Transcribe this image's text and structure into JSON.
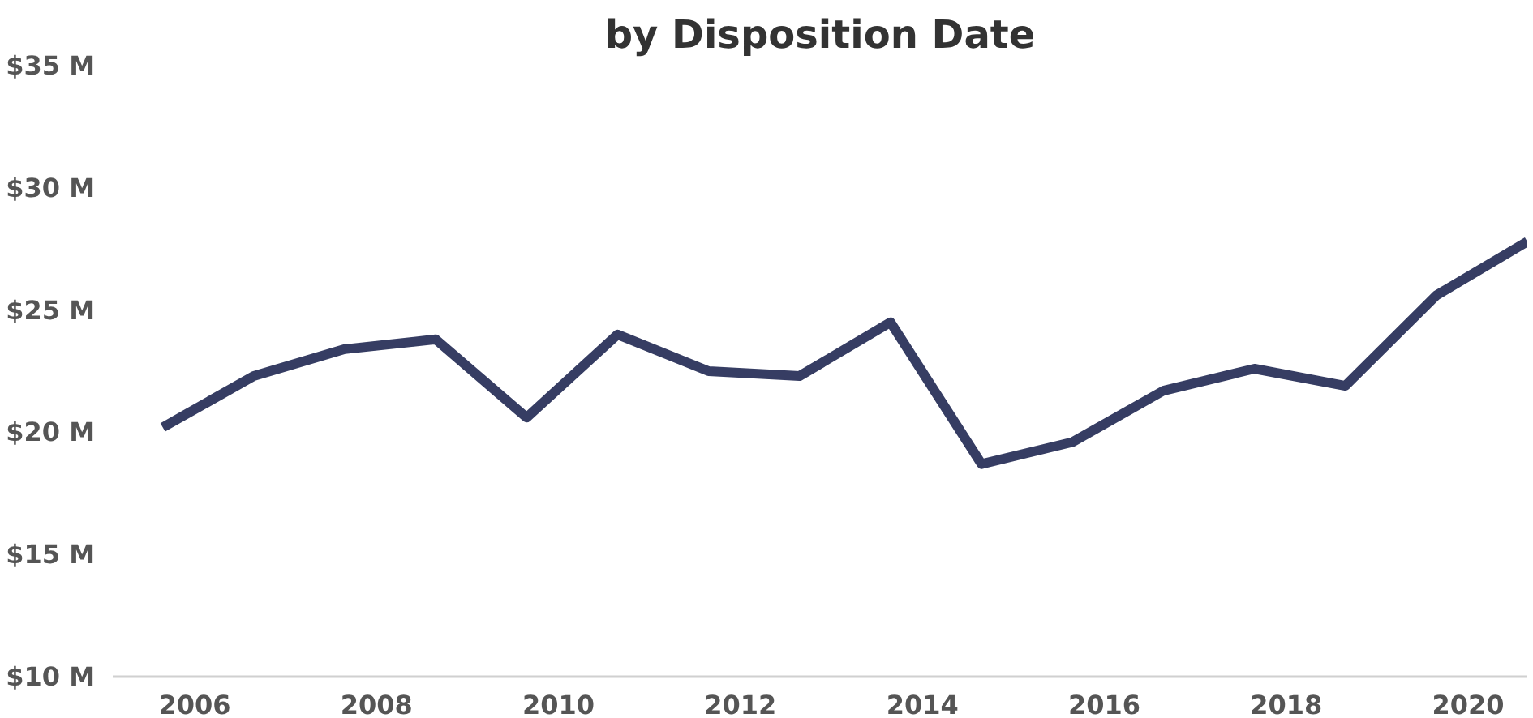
{
  "chart_data": {
    "type": "line",
    "title": "by Disposition Date",
    "x": [
      2005.65,
      2006.65,
      2007.65,
      2008.65,
      2009.65,
      2010.65,
      2011.65,
      2012.65,
      2013.65,
      2014.65,
      2015.65,
      2016.65,
      2017.65,
      2018.65,
      2019.65,
      2020.65
    ],
    "series": [
      {
        "color": "#363d63",
        "values": [
          20.2,
          22.3,
          23.4,
          23.8,
          20.6,
          24.0,
          22.5,
          22.3,
          24.5,
          18.7,
          19.6,
          21.7,
          22.6,
          21.9,
          25.6,
          27.8
        ]
      }
    ],
    "xlim": [
      2005.1,
      2020.65
    ],
    "xticks": [
      2006,
      2008,
      2010,
      2012,
      2014,
      2016,
      2018,
      2020
    ],
    "ylim": [
      10,
      35
    ],
    "yticks": [
      {
        "value": 10,
        "label": "$10 M"
      },
      {
        "value": 15,
        "label": "$15 M"
      },
      {
        "value": 20,
        "label": "$20 M"
      },
      {
        "value": 25,
        "label": "$25 M"
      },
      {
        "value": 30,
        "label": "$30 M"
      },
      {
        "value": 35,
        "label": "$35 M"
      }
    ],
    "grid": false,
    "marker": "none",
    "line_style": "solid"
  }
}
